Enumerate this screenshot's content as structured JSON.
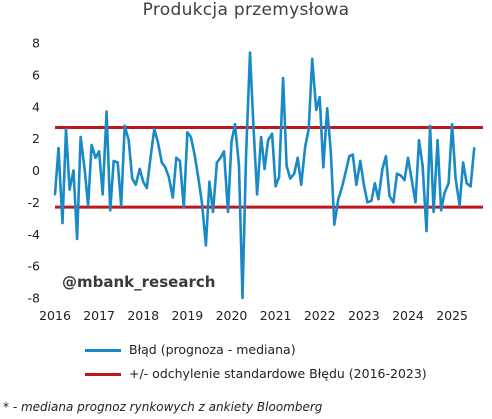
{
  "chart_data": {
    "type": "line",
    "title": "Produkcja przemysłowa",
    "xlabel": "",
    "ylabel": "",
    "xlim": [
      2016.0,
      2025.7
    ],
    "ylim": [
      -8,
      8
    ],
    "yticks": [
      "8",
      "6",
      "4",
      "2",
      "0",
      "-2",
      "-4",
      "-6",
      "-8"
    ],
    "xticks": [
      "2016",
      "2017",
      "2018",
      "2019",
      "2020",
      "2021",
      "2022",
      "2023",
      "2024",
      "2025"
    ],
    "grid": false,
    "legend_placement": "bottom",
    "series": [
      {
        "name": "Błąd (prognoza - mediana)",
        "color": "#1a8ac6",
        "x": [
          2016.0,
          2016.08,
          2016.17,
          2016.25,
          2016.33,
          2016.42,
          2016.5,
          2016.58,
          2016.67,
          2016.75,
          2016.83,
          2016.92,
          2017.0,
          2017.08,
          2017.17,
          2017.25,
          2017.33,
          2017.42,
          2017.5,
          2017.58,
          2017.67,
          2017.75,
          2017.83,
          2017.92,
          2018.0,
          2018.08,
          2018.17,
          2018.25,
          2018.33,
          2018.42,
          2018.5,
          2018.58,
          2018.67,
          2018.75,
          2018.83,
          2018.92,
          2019.0,
          2019.08,
          2019.17,
          2019.25,
          2019.33,
          2019.42,
          2019.5,
          2019.58,
          2019.67,
          2019.75,
          2019.83,
          2019.92,
          2020.0,
          2020.08,
          2020.17,
          2020.25,
          2020.33,
          2020.42,
          2020.5,
          2020.58,
          2020.67,
          2020.75,
          2020.83,
          2020.92,
          2021.0,
          2021.08,
          2021.17,
          2021.25,
          2021.33,
          2021.42,
          2021.5,
          2021.58,
          2021.67,
          2021.75,
          2021.83,
          2021.92,
          2022.0,
          2022.08,
          2022.17,
          2022.25,
          2022.33,
          2022.42,
          2022.5,
          2022.58,
          2022.67,
          2022.75,
          2022.83,
          2022.92,
          2023.0,
          2023.08,
          2023.17,
          2023.25,
          2023.33,
          2023.42,
          2023.5,
          2023.58,
          2023.67,
          2023.75,
          2023.83,
          2023.92,
          2024.0,
          2024.08,
          2024.17,
          2024.25,
          2024.33,
          2024.42,
          2024.5,
          2024.58,
          2024.67,
          2024.75,
          2024.83,
          2024.92,
          2025.0,
          2025.08,
          2025.17,
          2025.25,
          2025.33,
          2025.42,
          2025.5
        ],
        "values": [
          -1.5,
          1.4,
          -3.3,
          2.6,
          -1.2,
          0.0,
          -4.3,
          2.1,
          0.1,
          -2.2,
          1.6,
          0.8,
          1.2,
          -1.5,
          3.7,
          -2.5,
          0.6,
          0.5,
          -2.2,
          2.8,
          1.9,
          -0.5,
          -0.9,
          0.1,
          -0.7,
          -1.1,
          0.9,
          2.6,
          1.8,
          0.5,
          0.2,
          -0.4,
          -1.7,
          0.8,
          0.6,
          -2.3,
          2.4,
          2.1,
          0.9,
          -0.5,
          -2.0,
          -4.7,
          -0.7,
          -2.6,
          0.5,
          0.8,
          1.2,
          -2.6,
          1.8,
          2.9,
          0.3,
          -8.0,
          1.0,
          7.4,
          2.6,
          -1.5,
          2.1,
          0.1,
          1.9,
          2.3,
          -1.0,
          -0.4,
          5.8,
          0.3,
          -0.5,
          -0.2,
          0.8,
          -0.9,
          1.5,
          2.6,
          7.0,
          3.8,
          4.6,
          0.2,
          3.9,
          1.2,
          -3.4,
          -1.8,
          -1.1,
          -0.2,
          0.9,
          1.0,
          -0.9,
          0.6,
          -0.9,
          -2.0,
          -1.9,
          -0.8,
          -1.8,
          0.1,
          0.9,
          -1.6,
          -2.0,
          -0.2,
          -0.3,
          -0.6,
          0.8,
          -0.5,
          -2.0,
          1.9,
          0.3,
          -3.8,
          2.8,
          -2.6,
          1.9,
          -2.5,
          -1.4,
          -0.8,
          2.9,
          -0.5,
          -2.2,
          0.5,
          -0.8,
          -1.0,
          1.4
        ]
      },
      {
        "name": "+/- odchylenie standardowe Błędu (2016-2023)",
        "color": "#c0171c",
        "upper": 2.7,
        "lower": -2.3
      }
    ]
  },
  "watermark": "@mbank_research",
  "footnote": "* - mediana prognoz rynkowych z ankiety Bloomberg"
}
